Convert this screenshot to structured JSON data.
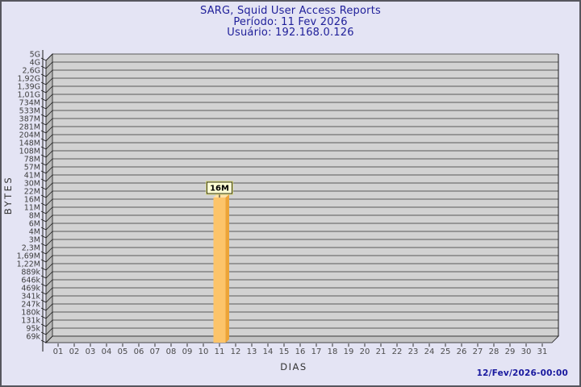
{
  "header": {
    "title": "SARG, Squid User Access Reports",
    "period_line": "Período: 11 Fev 2026",
    "user_line": "Usuário: 192.168.0.126"
  },
  "footer": {
    "timestamp": "12/Fev/2026-00:00"
  },
  "colors": {
    "page_bg": "#e4e4f4",
    "title_text": "#20209a",
    "timestamp_text": "#18189e",
    "plot_bg": "#d2d2d2",
    "grid_line": "#5a5a5a",
    "frame_line": "#1a1a1a",
    "left_wall": "#b9b9b9",
    "floor": "#c4c4c4",
    "axis_text": "#3d3d3d",
    "bar_front": "#fcc46a",
    "bar_side": "#eca438",
    "bar_top": "#ffe0a4",
    "annotation_bg": "#ffffd4",
    "annotation_border": "#3a3a1a",
    "annotation_outer_border": "#d6d67e",
    "annotation_text": "#000000"
  },
  "chart_data": {
    "type": "bar",
    "title": "SARG, Squid User Access Reports",
    "subtitle": [
      "Período: 11 Fev 2026",
      "Usuário: 192.168.0.126"
    ],
    "xlabel": "DIAS",
    "ylabel": "BYTES",
    "y_scale": "log",
    "grid": true,
    "legend_position": "none",
    "categories": [
      "01",
      "02",
      "03",
      "04",
      "05",
      "06",
      "07",
      "08",
      "09",
      "10",
      "11",
      "12",
      "13",
      "14",
      "15",
      "16",
      "17",
      "18",
      "19",
      "20",
      "21",
      "22",
      "23",
      "24",
      "25",
      "26",
      "27",
      "28",
      "29",
      "30",
      "31"
    ],
    "values": [
      0,
      0,
      0,
      0,
      0,
      0,
      0,
      0,
      0,
      0,
      16000000,
      0,
      0,
      0,
      0,
      0,
      0,
      0,
      0,
      0,
      0,
      0,
      0,
      0,
      0,
      0,
      0,
      0,
      0,
      0,
      0
    ],
    "value_labels": [
      "",
      "",
      "",
      "",
      "",
      "",
      "",
      "",
      "",
      "",
      "16M",
      "",
      "",
      "",
      "",
      "",
      "",
      "",
      "",
      "",
      "",
      "",
      "",
      "",
      "",
      "",
      "",
      "",
      "",
      "",
      ""
    ],
    "y_tick_labels_top_to_bottom": [
      "5G",
      "4G",
      "2,6G",
      "1,92G",
      "1,39G",
      "1,01G",
      "734M",
      "533M",
      "387M",
      "281M",
      "204M",
      "148M",
      "108M",
      "78M",
      "57M",
      "41M",
      "30M",
      "22M",
      "16M",
      "11M",
      "8M",
      "6M",
      "4M",
      "3M",
      "2,3M",
      "1,69M",
      "1,22M",
      "889k",
      "646k",
      "469k",
      "341k",
      "247k",
      "180k",
      "131k",
      "95k",
      "69k"
    ],
    "annotation": {
      "day": "11",
      "value_label": "16M"
    },
    "timestamp": "12/Fev/2026-00:00"
  }
}
